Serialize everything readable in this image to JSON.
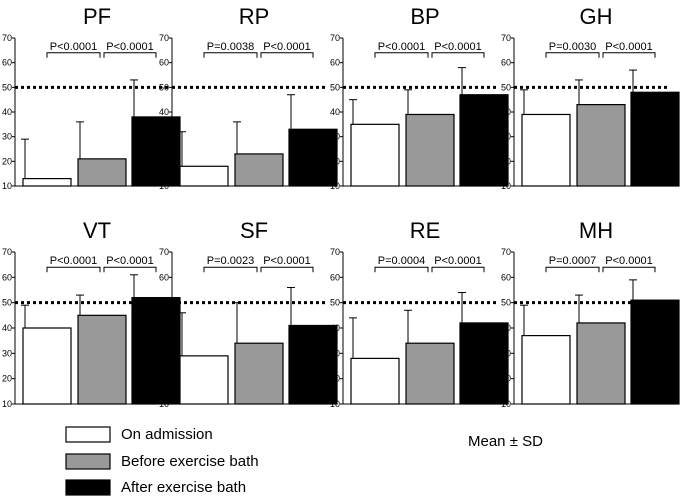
{
  "chart_data": {
    "type": "bar",
    "y_ticks": [
      "10",
      "20",
      "30",
      "40",
      "50",
      "60",
      "70"
    ],
    "ylim": [
      10,
      70
    ],
    "reference_line": 50,
    "series": [
      {
        "name": "On admission",
        "color": "#ffffff"
      },
      {
        "name": "Before exercise bath",
        "color": "#999999"
      },
      {
        "name": "After exercise bath",
        "color": "#000000"
      }
    ],
    "note": "Mean ± SD",
    "panels": [
      {
        "title": "PF",
        "means": [
          13,
          21,
          38
        ],
        "sd": [
          16,
          15,
          15
        ],
        "p_values": [
          "P<0.0001",
          "P<0.0001"
        ]
      },
      {
        "title": "RP",
        "means": [
          18,
          23,
          33
        ],
        "sd": [
          14,
          13,
          14
        ],
        "p_values": [
          "P=0.0038",
          "P<0.0001"
        ]
      },
      {
        "title": "BP",
        "means": [
          35,
          39,
          47
        ],
        "sd": [
          10,
          10,
          11
        ],
        "p_values": [
          "P<0.0001",
          "P<0.0001"
        ]
      },
      {
        "title": "GH",
        "means": [
          39,
          43,
          48
        ],
        "sd": [
          10,
          10,
          9
        ],
        "p_values": [
          "P=0.0030",
          "P<0.0001"
        ]
      },
      {
        "title": "VT",
        "means": [
          40,
          45,
          52
        ],
        "sd": [
          9,
          8,
          9
        ],
        "p_values": [
          "P<0.0001",
          "P<0.0001"
        ]
      },
      {
        "title": "SF",
        "means": [
          29,
          34,
          41
        ],
        "sd": [
          17,
          16,
          15
        ],
        "p_values": [
          "P=0.0023",
          "P<0.0001"
        ]
      },
      {
        "title": "RE",
        "means": [
          28,
          34,
          42
        ],
        "sd": [
          16,
          13,
          12
        ],
        "p_values": [
          "P=0.0004",
          "P<0.0001"
        ]
      },
      {
        "title": "MH",
        "means": [
          37,
          42,
          51
        ],
        "sd": [
          12,
          11,
          8
        ],
        "p_values": [
          "P=0.0007",
          "P<0.0001"
        ]
      }
    ]
  }
}
